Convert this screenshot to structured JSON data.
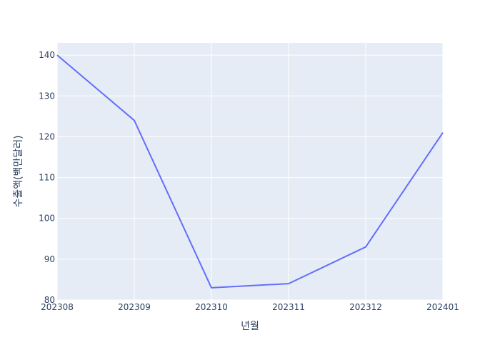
{
  "chart_data": {
    "type": "line",
    "title": "",
    "xlabel": "년월",
    "ylabel": "수출액(백만달러)",
    "x": [
      "202308",
      "202309",
      "202310",
      "202311",
      "202312",
      "202401"
    ],
    "series": [
      {
        "name": "",
        "values": [
          140,
          124,
          83,
          84,
          93,
          121
        ]
      }
    ],
    "yticks": [
      80,
      90,
      100,
      110,
      120,
      130,
      140
    ],
    "ylim": [
      80,
      143
    ],
    "grid": true,
    "legend": "none"
  },
  "colors": {
    "plot_background": "#E5ECF6",
    "grid": "#FFFFFF",
    "line": "#636EFA",
    "text": "#2A3F5F"
  }
}
